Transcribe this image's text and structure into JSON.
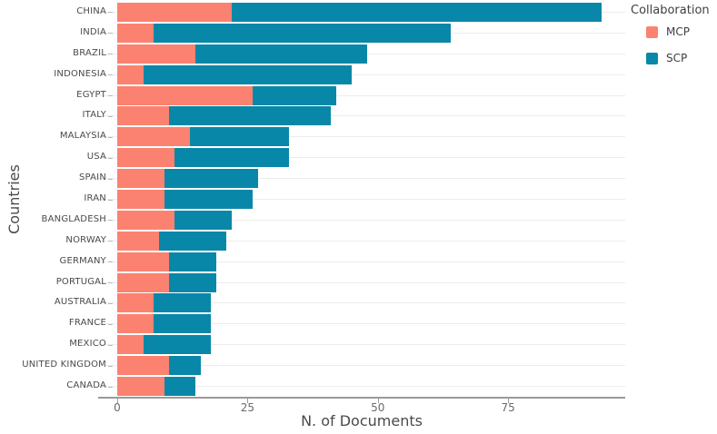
{
  "chart_data": {
    "type": "bar",
    "orientation": "horizontal",
    "stacked": true,
    "xlabel": "N. of Documents",
    "ylabel": "Countries",
    "legend_title": "Collaboration",
    "legend_position": "top-right",
    "grid": "horizontal category gridlines only",
    "xlim": [
      -3.7,
      97.5
    ],
    "x_ticks": [
      0,
      25,
      50,
      75
    ],
    "x_tick_labels": [
      "0",
      "25",
      "50",
      "75"
    ],
    "categories": [
      "CHINA",
      "INDIA",
      "BRAZIL",
      "INDONESIA",
      "EGYPT",
      "ITALY",
      "MALAYSIA",
      "USA",
      "SPAIN",
      "IRAN",
      "BANGLADESH",
      "NORWAY",
      "GERMANY",
      "PORTUGAL",
      "AUSTRALIA",
      "FRANCE",
      "MEXICO",
      "UNITED KINGDOM",
      "CANADA"
    ],
    "series": [
      {
        "name": "MCP",
        "color": "#fb8270",
        "values": [
          22,
          7,
          15,
          5,
          26,
          10,
          14,
          11,
          9,
          9,
          11,
          8,
          10,
          10,
          7,
          7,
          5,
          10,
          9
        ]
      },
      {
        "name": "SCP",
        "color": "#0987a8",
        "values": [
          71,
          57,
          33,
          40,
          16,
          31,
          19,
          22,
          18,
          17,
          11,
          13,
          9,
          9,
          11,
          11,
          13,
          6,
          6
        ]
      }
    ]
  },
  "colors": {
    "gridline": "#ececec",
    "axis_line": "#9a9a9a",
    "tick_label": "#696969",
    "category_label": "#4a4a4a",
    "axis_title": "#4a4a4a"
  }
}
